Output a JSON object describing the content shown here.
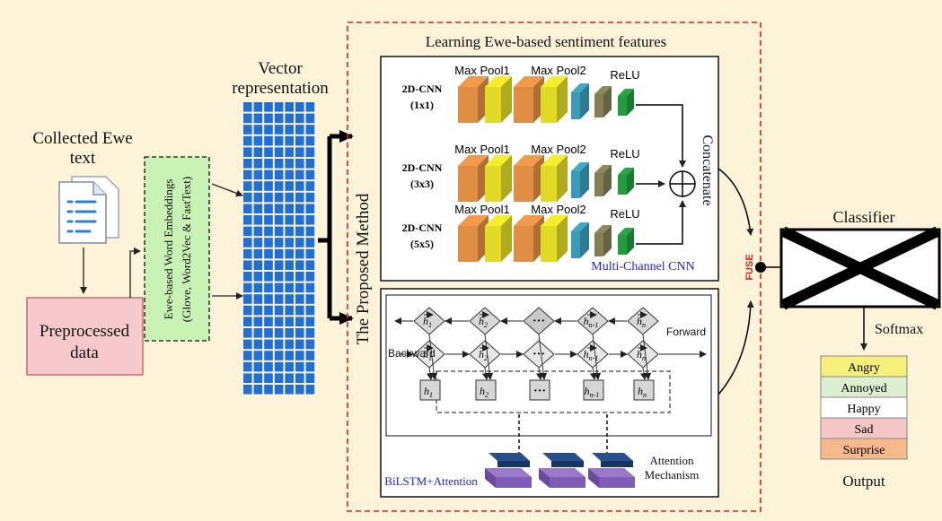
{
  "input": {
    "title_line1": "Collected Ewe",
    "title_line2": "text",
    "preprocessed_line1": "Preprocessed",
    "preprocessed_line2": "data"
  },
  "embeddings": {
    "line1": "Ewe-based Word Embeddings",
    "line2": "(Glove, Word2Vec & FastText)"
  },
  "vector": {
    "line1": "Vector",
    "line2": "representation"
  },
  "method": {
    "title": "Learning Ewe-based sentiment features",
    "side_label": "The Proposed Method",
    "fuse_label": "FUSE"
  },
  "cnn": {
    "caption": "Multi-Channel CNN",
    "concat_label": "Concatenate",
    "rows": [
      {
        "name": "2D-CNN",
        "kernel": "(1x1)",
        "pool1": "Max Pool1",
        "pool2": "Max Pool2",
        "relu": "ReLU"
      },
      {
        "name": "2D-CNN",
        "kernel": "(3x3)",
        "pool1": "Max Pool1",
        "pool2": "Max Pool2",
        "relu": "ReLU"
      },
      {
        "name": "2D-CNN",
        "kernel": "(5x5)",
        "pool1": "Max Pool1",
        "pool2": "Max Pool2",
        "relu": "ReLU"
      }
    ]
  },
  "bilstm": {
    "caption": "BiLSTM+Attention",
    "backward_label": "Backward",
    "forward_label": "Forward",
    "attention_line1": "Attention",
    "attention_line2": "Mechanism",
    "top_nodes": [
      "h1",
      "h2",
      "...",
      "hn-1",
      "hn"
    ],
    "mid_nodes": [
      "h1",
      "h2",
      "...",
      "hn-1",
      "hn"
    ],
    "box_nodes": [
      "h1",
      "h2",
      "...",
      "hn-1",
      "hn"
    ]
  },
  "classifier": {
    "title": "Classifier",
    "softmax": "Softmax",
    "output_label": "Output",
    "classes": [
      {
        "label": "Angry",
        "color": "#f6f07a"
      },
      {
        "label": "Annoyed",
        "color": "#dcefd0"
      },
      {
        "label": "Happy",
        "color": "#ffffff"
      },
      {
        "label": "Sad",
        "color": "#f4c6c6"
      },
      {
        "label": "Surprise",
        "color": "#f6b98a"
      }
    ]
  }
}
